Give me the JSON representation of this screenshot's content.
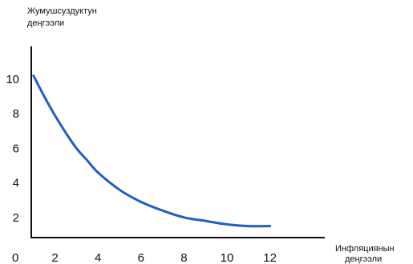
{
  "chart_data": {
    "type": "line",
    "title": "",
    "ylabel": [
      "Жумушсуздуктун",
      "деңгээли"
    ],
    "xlabel": [
      "Инфляциянын",
      "деңгээли"
    ],
    "origin_label": "0",
    "x_ticks": [
      2,
      4,
      6,
      8,
      10,
      12
    ],
    "y_ticks": [
      2,
      4,
      6,
      8,
      10
    ],
    "xlim": [
      0,
      13
    ],
    "ylim": [
      0,
      10.5
    ],
    "grid": false,
    "series": [
      {
        "color": "#1f5fbf",
        "x": [
          1.0,
          1.5,
          2.0,
          2.5,
          3.0,
          3.5,
          4.0,
          5.0,
          6.0,
          7.0,
          8.0,
          9.0,
          10.0,
          11.0,
          12.0
        ],
        "y": [
          10.2,
          9.0,
          7.9,
          6.9,
          6.0,
          5.3,
          4.6,
          3.6,
          2.9,
          2.4,
          2.0,
          1.8,
          1.6,
          1.5,
          1.5
        ]
      }
    ]
  }
}
